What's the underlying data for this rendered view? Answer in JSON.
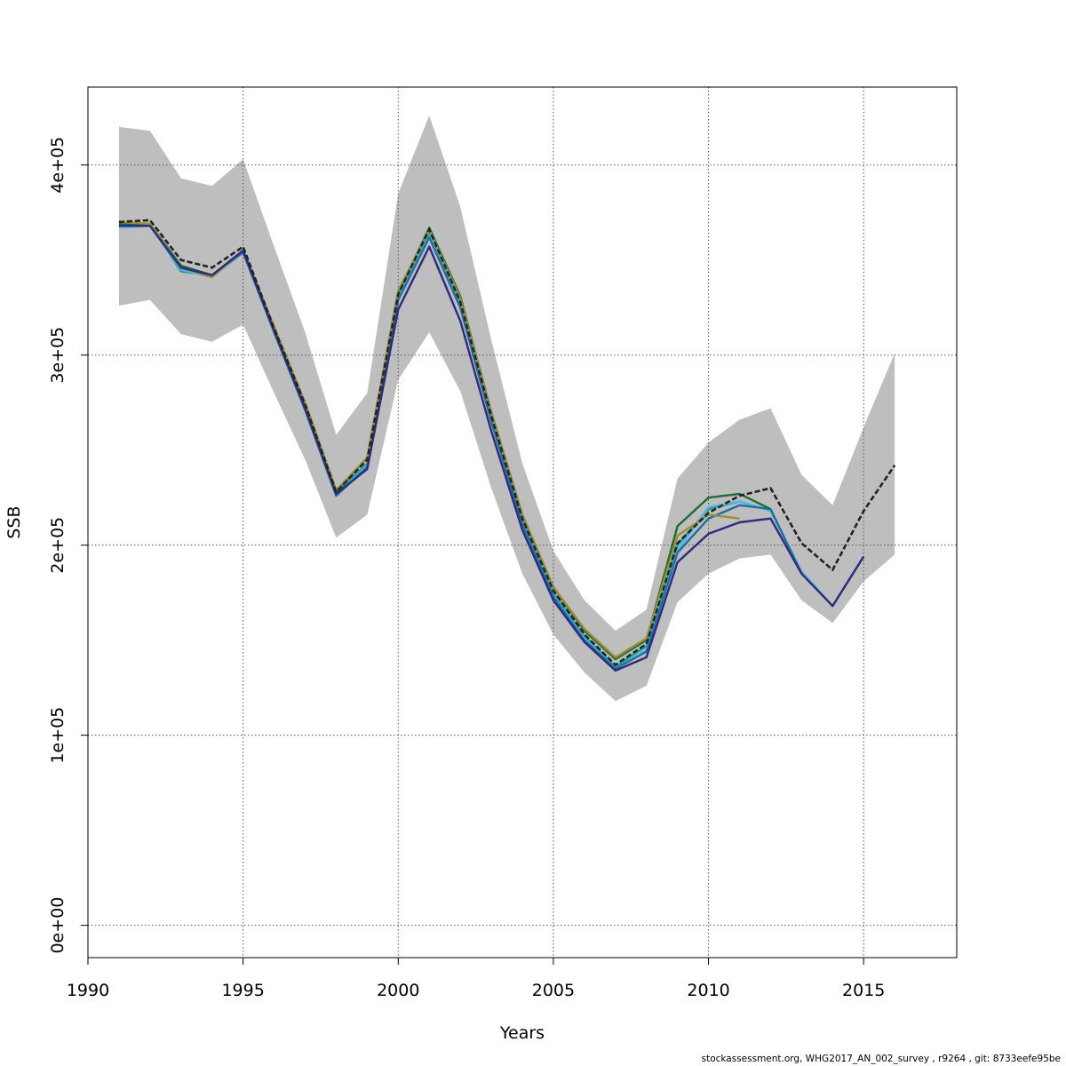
{
  "chart_data": {
    "type": "line",
    "title": "",
    "xlabel": "Years",
    "ylabel": "SSB",
    "xlim": [
      1990,
      2018
    ],
    "ylim": [
      -17000,
      441000
    ],
    "x_ticks": [
      1990,
      1995,
      2000,
      2005,
      2010,
      2015
    ],
    "x_tick_labels": [
      "1990",
      "1995",
      "2000",
      "2005",
      "2010",
      "2015"
    ],
    "y_ticks": [
      0,
      100000,
      200000,
      300000,
      400000
    ],
    "y_tick_labels": [
      "0e+00",
      "1e+05",
      "2e+05",
      "3e+05",
      "4e+05"
    ],
    "grid": true,
    "band": {
      "x": [
        1991,
        1992,
        1993,
        1994,
        1995,
        1996,
        1997,
        1998,
        1999,
        2000,
        2001,
        2002,
        2003,
        2004,
        2005,
        2006,
        2007,
        2008,
        2009,
        2010,
        2011,
        2012,
        2013,
        2014,
        2015,
        2016
      ],
      "upper": [
        420000,
        418000,
        393000,
        389000,
        403000,
        357000,
        312000,
        258000,
        280000,
        385000,
        426000,
        378000,
        308000,
        243000,
        197000,
        171000,
        155000,
        166000,
        235000,
        254000,
        266000,
        272000,
        237000,
        221000,
        262000,
        301000
      ],
      "lower": [
        326000,
        329000,
        311000,
        307000,
        316000,
        280000,
        245000,
        204000,
        216000,
        287000,
        312000,
        281000,
        230000,
        185000,
        153000,
        133000,
        118000,
        126000,
        170000,
        185000,
        193000,
        195000,
        171000,
        159000,
        181000,
        195000
      ],
      "color": "#bebebe"
    },
    "series": [
      {
        "color": "#222222",
        "dashed": true,
        "x": [
          1991,
          1992,
          1993,
          1994,
          1995,
          1996,
          1997,
          1998,
          1999,
          2000,
          2001,
          2002,
          2003,
          2004,
          2005,
          2006,
          2007,
          2008,
          2009,
          2010,
          2011,
          2012,
          2013,
          2014,
          2015,
          2016
        ],
        "values": [
          370000,
          371000,
          350000,
          346000,
          357000,
          314000,
          274000,
          228000,
          245000,
          332000,
          366000,
          328000,
          268000,
          214000,
          176000,
          153000,
          137000,
          148000,
          201000,
          217000,
          226000,
          230000,
          201000,
          187000,
          218000,
          242000
        ]
      },
      {
        "color": "#1b9e8f",
        "dashed": false,
        "x": [
          1991,
          1992,
          1993,
          1994,
          1995,
          1996,
          1997,
          1998,
          1999,
          2000,
          2001,
          2002,
          2003,
          2004,
          2005,
          2006,
          2007,
          2008,
          2009,
          2010,
          2011,
          2012,
          2013,
          2014,
          2015
        ],
        "values": [
          368000,
          369000,
          344000,
          342000,
          355000,
          313000,
          272000,
          227000,
          243000,
          331000,
          364000,
          327000,
          267000,
          213000,
          175000,
          152000,
          136000,
          147000,
          200000,
          219000,
          223000,
          218000,
          186000,
          168000,
          194000
        ]
      },
      {
        "color": "#4fb8e8",
        "dashed": false,
        "x": [
          1991,
          1992,
          1993,
          1994,
          1995,
          1996,
          1997,
          1998,
          1999,
          2000,
          2001,
          2002,
          2003,
          2004,
          2005,
          2006,
          2007,
          2008,
          2009,
          2010,
          2011,
          2012,
          2013,
          2014
        ],
        "values": [
          367000,
          368000,
          345000,
          341000,
          354000,
          312000,
          271000,
          226000,
          242000,
          330000,
          363000,
          326000,
          266000,
          212000,
          174000,
          151000,
          135000,
          145000,
          197000,
          220000,
          223000,
          218000,
          186000,
          168000
        ]
      },
      {
        "color": "#1d6fa3",
        "dashed": false,
        "x": [
          1991,
          1992,
          1993,
          1994,
          1995,
          1996,
          1997,
          1998,
          1999,
          2000,
          2001,
          2002,
          2003,
          2004,
          2005,
          2006,
          2007,
          2008,
          2009,
          2010,
          2011,
          2012,
          2013
        ],
        "values": [
          368000,
          368000,
          346000,
          342000,
          354000,
          312000,
          271000,
          226000,
          241000,
          329000,
          362000,
          325000,
          265000,
          211000,
          173000,
          150000,
          135000,
          144000,
          196000,
          214000,
          221000,
          219000,
          185000
        ]
      },
      {
        "color": "#1a6e34",
        "dashed": false,
        "x": [
          1991,
          1992,
          1993,
          1994,
          1995,
          1996,
          1997,
          1998,
          1999,
          2000,
          2001,
          2002,
          2003,
          2004,
          2005,
          2006,
          2007,
          2008,
          2009,
          2010,
          2011,
          2012
        ],
        "values": [
          369000,
          369000,
          347000,
          342000,
          355000,
          314000,
          274000,
          228000,
          246000,
          333000,
          367000,
          331000,
          270000,
          216000,
          178000,
          155000,
          140000,
          150000,
          210000,
          225000,
          227000,
          219000
        ]
      },
      {
        "color": "#9a8f35",
        "dashed": false,
        "x": [
          1991,
          1992,
          1993,
          1994,
          1995,
          1996,
          1997,
          1998,
          1999,
          2000,
          2001,
          2002,
          2003,
          2004,
          2005,
          2006,
          2007,
          2008,
          2009,
          2010,
          2011
        ],
        "values": [
          370000,
          369000,
          346000,
          341000,
          355000,
          315000,
          275000,
          229000,
          246000,
          334000,
          366000,
          330000,
          270000,
          216000,
          178000,
          156000,
          141000,
          151000,
          205000,
          216000,
          214000
        ]
      },
      {
        "color": "#2e2a7e",
        "dashed": false,
        "x": [
          1991,
          1992,
          1993,
          1994,
          1995,
          1996,
          1997,
          1998,
          1999,
          2000,
          2001,
          2002,
          2003,
          2004,
          2005,
          2006,
          2007,
          2008,
          2009,
          2010,
          2011,
          2012,
          2013,
          2014,
          2015
        ],
        "values": [
          368000,
          368000,
          346000,
          342000,
          355000,
          313000,
          272000,
          227000,
          240000,
          324000,
          357000,
          318000,
          260000,
          208000,
          171000,
          149000,
          134000,
          141000,
          191000,
          206000,
          212000,
          214000,
          185000,
          168000,
          194000
        ]
      }
    ]
  },
  "footer": {
    "note": "stockassessment.org, WHG2017_AN_002_survey , r9264 , git: 8733eefe95be"
  }
}
